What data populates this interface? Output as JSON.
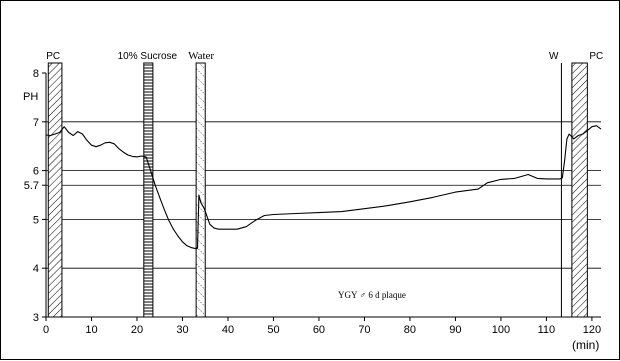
{
  "chart_data": {
    "type": "line",
    "ylabel": "PH",
    "xunit": "(min)",
    "xlim": [
      0,
      122
    ],
    "ylim": [
      3,
      8
    ],
    "xticks": [
      0,
      10,
      20,
      30,
      40,
      50,
      60,
      70,
      80,
      90,
      100,
      110,
      120
    ],
    "yticks": [
      {
        "value": 3,
        "label": "3"
      },
      {
        "value": 4,
        "label": "4"
      },
      {
        "value": 5,
        "label": "5"
      },
      {
        "value": 5.7,
        "label": "5.7"
      },
      {
        "value": 6,
        "label": "6"
      },
      {
        "value": 7,
        "label": "7"
      },
      {
        "value": 8,
        "label": "8"
      }
    ],
    "gridlines": [
      4,
      5,
      5.7,
      6,
      7
    ],
    "annotation": "YGY ♂   6 d plaque",
    "markers": [
      {
        "label": "PC",
        "start": 0.5,
        "end": 3.5,
        "pattern": "diagonal"
      },
      {
        "label": "10% Sucrose",
        "start": 21.5,
        "end": 23.5,
        "pattern": "horizontal"
      },
      {
        "label": "Water",
        "start": 33.0,
        "end": 35.0,
        "pattern": "dotted-diagonal"
      },
      {
        "label": "W",
        "start": 113.3,
        "end": 114.0,
        "pattern": "line"
      },
      {
        "label": "PC",
        "start": 115.6,
        "end": 119.0,
        "pattern": "diagonal"
      }
    ],
    "series": [
      {
        "points": [
          [
            0,
            6.73
          ],
          [
            1,
            6.72
          ],
          [
            2,
            6.75
          ],
          [
            3,
            6.78
          ],
          [
            4,
            6.9
          ],
          [
            5,
            6.78
          ],
          [
            6,
            6.72
          ],
          [
            7,
            6.8
          ],
          [
            8,
            6.75
          ],
          [
            9,
            6.62
          ],
          [
            10,
            6.52
          ],
          [
            11,
            6.49
          ],
          [
            12,
            6.52
          ],
          [
            13,
            6.57
          ],
          [
            14,
            6.58
          ],
          [
            15,
            6.55
          ],
          [
            16,
            6.45
          ],
          [
            17,
            6.38
          ],
          [
            18,
            6.32
          ],
          [
            19,
            6.29
          ],
          [
            20,
            6.28
          ],
          [
            21,
            6.3
          ],
          [
            22,
            6.28
          ],
          [
            23,
            6.0
          ],
          [
            24,
            5.7
          ],
          [
            25,
            5.45
          ],
          [
            26,
            5.2
          ],
          [
            27,
            4.98
          ],
          [
            28,
            4.8
          ],
          [
            29,
            4.66
          ],
          [
            30,
            4.54
          ],
          [
            31,
            4.46
          ],
          [
            32,
            4.42
          ],
          [
            33,
            4.4
          ],
          [
            33.3,
            4.41
          ],
          [
            33.6,
            5.5
          ],
          [
            34.0,
            5.35
          ],
          [
            34.8,
            5.22
          ],
          [
            36,
            4.9
          ],
          [
            37,
            4.82
          ],
          [
            38,
            4.8
          ],
          [
            40,
            4.8
          ],
          [
            42,
            4.8
          ],
          [
            44,
            4.85
          ],
          [
            46,
            4.98
          ],
          [
            48,
            5.08
          ],
          [
            50,
            5.1
          ],
          [
            55,
            5.12
          ],
          [
            60,
            5.14
          ],
          [
            65,
            5.16
          ],
          [
            70,
            5.22
          ],
          [
            75,
            5.28
          ],
          [
            80,
            5.36
          ],
          [
            85,
            5.45
          ],
          [
            90,
            5.56
          ],
          [
            95,
            5.62
          ],
          [
            97,
            5.75
          ],
          [
            100,
            5.82
          ],
          [
            103,
            5.84
          ],
          [
            106,
            5.92
          ],
          [
            108,
            5.84
          ],
          [
            110,
            5.83
          ],
          [
            112,
            5.83
          ],
          [
            113.0,
            5.83
          ],
          [
            113.5,
            5.85
          ],
          [
            114.0,
            6.2
          ],
          [
            114.5,
            6.65
          ],
          [
            115,
            6.75
          ],
          [
            116,
            6.65
          ],
          [
            117,
            6.72
          ],
          [
            118,
            6.75
          ],
          [
            119,
            6.82
          ],
          [
            120,
            6.9
          ],
          [
            121,
            6.92
          ],
          [
            122,
            6.85
          ]
        ]
      }
    ]
  }
}
